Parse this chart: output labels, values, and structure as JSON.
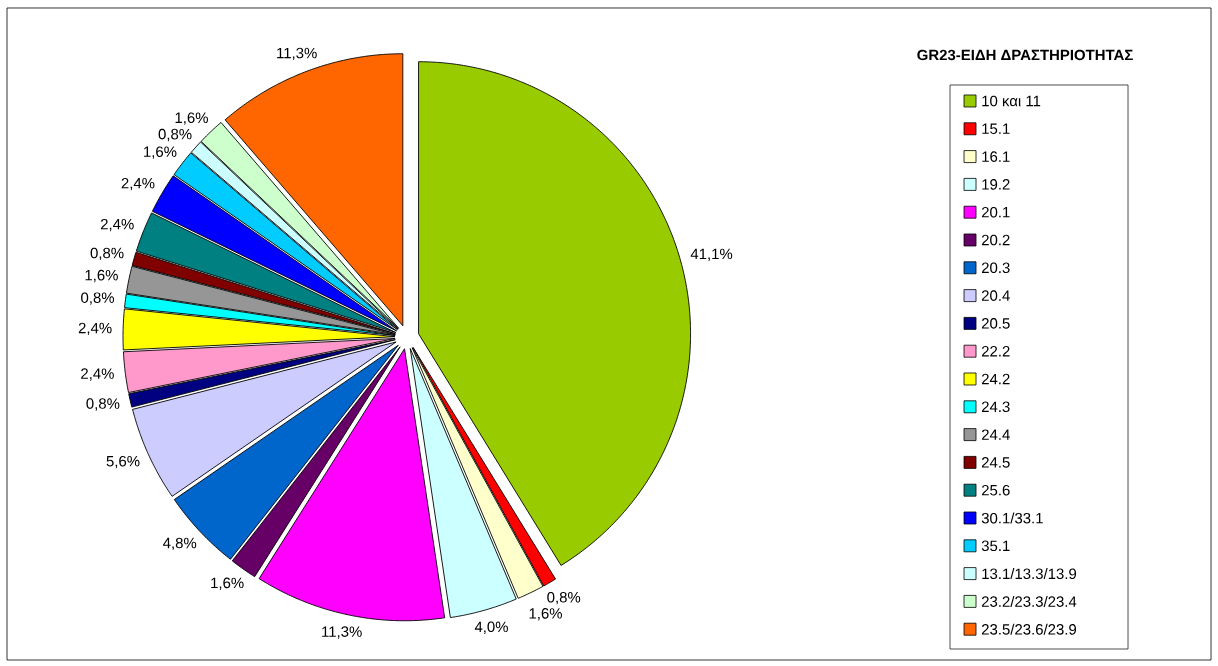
{
  "chart_data": {
    "type": "pie",
    "title": "GR23-ΕΙΔΗ ΔΡΑΣΤΗΡΙΟΤΗΤΑΣ",
    "categories": [
      "10 και 11",
      "15.1",
      "16.1",
      "19.2",
      "20.1",
      "20.2",
      "20.3",
      "20.4",
      "20.5",
      "22.2",
      "24.2",
      "24.3",
      "24.4",
      "24.5",
      "25.6",
      "30.1/33.1",
      "35.1",
      "13.1/13.3/13.9",
      "23.2/23.3/23.4",
      "23.5/23.6/23.9"
    ],
    "values": [
      41.1,
      0.8,
      1.6,
      4.0,
      11.3,
      1.6,
      4.8,
      5.6,
      0.8,
      2.4,
      2.4,
      0.8,
      1.6,
      0.8,
      2.4,
      2.4,
      1.6,
      0.8,
      1.6,
      11.3
    ],
    "value_labels": [
      "41,1%",
      "0,8%",
      "1,6%",
      "4,0%",
      "11,3%",
      "1,6%",
      "4,8%",
      "5,6%",
      "0,8%",
      "2,4%",
      "2,4%",
      "0,8%",
      "1,6%",
      "0,8%",
      "2,4%",
      "2,4%",
      "1,6%",
      "0,8%",
      "1,6%",
      "11,3%"
    ],
    "colors": [
      "#99cc00",
      "#ff0000",
      "#ffffcc",
      "#ccffff",
      "#ff00ff",
      "#660066",
      "#0066cc",
      "#ccccff",
      "#000080",
      "#ff99cc",
      "#ffff00",
      "#00ffff",
      "#969696",
      "#800000",
      "#008080",
      "#0000ff",
      "#00ccff",
      "#ccffff",
      "#ccffcc",
      "#ff6600"
    ],
    "legend": "right"
  }
}
